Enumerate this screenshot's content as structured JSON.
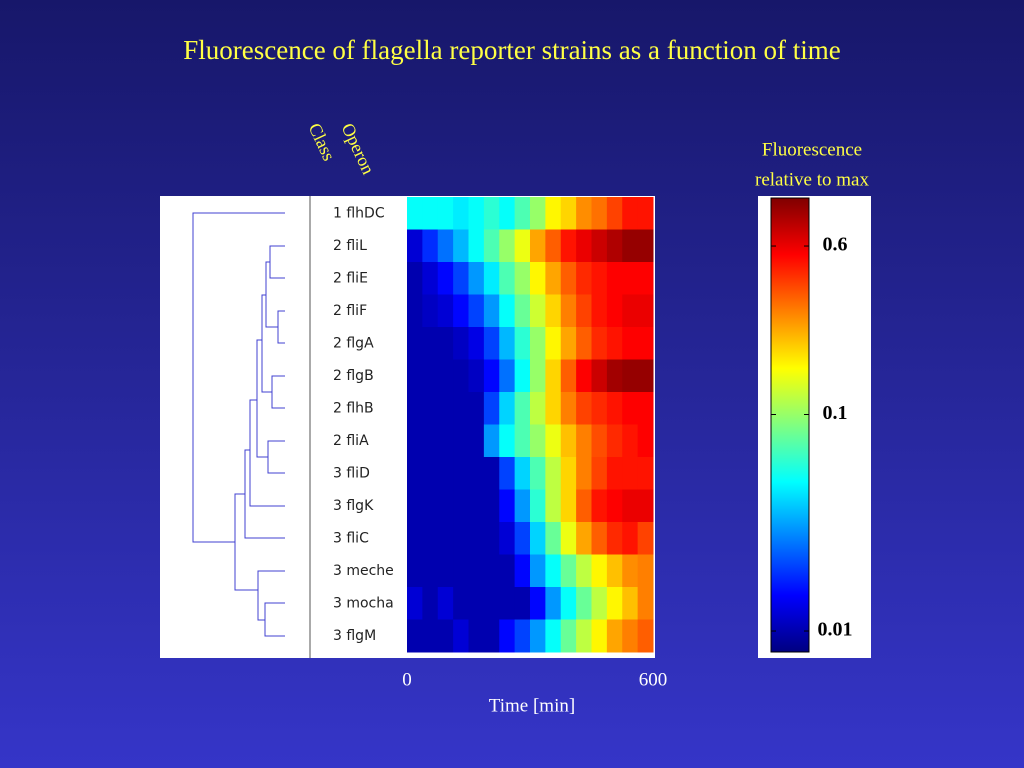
{
  "chart_data": {
    "type": "heatmap",
    "title": "Fluorescence of flagella reporter strains as a function of time",
    "row_header": [
      "Operon",
      "Class"
    ],
    "categories": [
      "1 flhDC",
      "2 fliL",
      "2 fliE",
      "2 fliF",
      "2 flgA",
      "2 flgB",
      "2 flhB",
      "2 fliA",
      "3 fliD",
      "3 flgK",
      "3 fliC",
      "3 meche",
      "3 mocha",
      "3 flgM"
    ],
    "values": [
      [
        0.05,
        0.05,
        0.05,
        0.045,
        0.05,
        0.06,
        0.05,
        0.07,
        0.1,
        0.17,
        0.2,
        0.28,
        0.32,
        0.4,
        0.5,
        0.5
      ],
      [
        0.012,
        0.018,
        0.025,
        0.035,
        0.05,
        0.07,
        0.1,
        0.15,
        0.25,
        0.35,
        0.5,
        0.6,
        0.7,
        0.8,
        0.9,
        0.9
      ],
      [
        0.01,
        0.012,
        0.015,
        0.02,
        0.03,
        0.045,
        0.07,
        0.1,
        0.17,
        0.25,
        0.35,
        0.45,
        0.5,
        0.55,
        0.55,
        0.55
      ],
      [
        0.01,
        0.011,
        0.012,
        0.015,
        0.02,
        0.03,
        0.05,
        0.08,
        0.13,
        0.2,
        0.3,
        0.4,
        0.5,
        0.55,
        0.6,
        0.6
      ],
      [
        0.01,
        0.01,
        0.01,
        0.011,
        0.013,
        0.02,
        0.035,
        0.06,
        0.1,
        0.17,
        0.25,
        0.35,
        0.45,
        0.5,
        0.55,
        0.55
      ],
      [
        0.01,
        0.01,
        0.01,
        0.01,
        0.011,
        0.015,
        0.025,
        0.05,
        0.1,
        0.2,
        0.35,
        0.55,
        0.7,
        0.85,
        0.9,
        0.9
      ],
      [
        0.01,
        0.01,
        0.01,
        0.01,
        0.01,
        0.02,
        0.04,
        0.07,
        0.12,
        0.2,
        0.3,
        0.4,
        0.45,
        0.5,
        0.55,
        0.55
      ],
      [
        0.01,
        0.01,
        0.01,
        0.01,
        0.01,
        0.03,
        0.05,
        0.07,
        0.1,
        0.15,
        0.22,
        0.3,
        0.38,
        0.45,
        0.5,
        0.55
      ],
      [
        0.01,
        0.01,
        0.01,
        0.01,
        0.01,
        0.01,
        0.02,
        0.04,
        0.07,
        0.12,
        0.2,
        0.3,
        0.4,
        0.5,
        0.5,
        0.5
      ],
      [
        0.01,
        0.01,
        0.01,
        0.01,
        0.01,
        0.01,
        0.015,
        0.03,
        0.06,
        0.12,
        0.2,
        0.35,
        0.5,
        0.55,
        0.6,
        0.6
      ],
      [
        0.01,
        0.01,
        0.01,
        0.01,
        0.01,
        0.01,
        0.012,
        0.02,
        0.04,
        0.08,
        0.15,
        0.25,
        0.35,
        0.45,
        0.5,
        0.4
      ],
      [
        0.01,
        0.01,
        0.01,
        0.01,
        0.01,
        0.01,
        0.01,
        0.015,
        0.03,
        0.05,
        0.08,
        0.12,
        0.17,
        0.22,
        0.28,
        0.3
      ],
      [
        0.012,
        0.01,
        0.012,
        0.01,
        0.01,
        0.01,
        0.01,
        0.01,
        0.015,
        0.03,
        0.05,
        0.08,
        0.12,
        0.17,
        0.22,
        0.3
      ],
      [
        0.01,
        0.01,
        0.01,
        0.012,
        0.01,
        0.01,
        0.015,
        0.02,
        0.03,
        0.05,
        0.08,
        0.12,
        0.17,
        0.25,
        0.3,
        0.35
      ]
    ],
    "xlabel": "Time [min]",
    "xlim": [
      0,
      600
    ],
    "xticks": [
      0,
      600
    ],
    "colorbar_label": [
      "Fluorescence",
      "relative to max"
    ],
    "clim": [
      0.008,
      1
    ],
    "color_log": true,
    "colormap": "jet",
    "cticks": [
      0.01,
      0.1,
      0.6
    ]
  }
}
